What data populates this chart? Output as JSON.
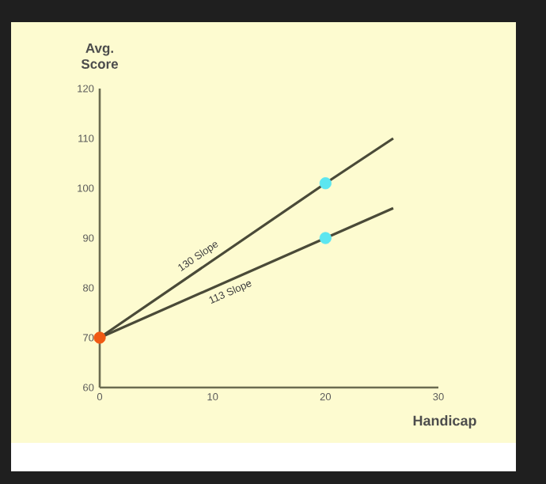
{
  "chart_data": {
    "type": "line",
    "xlabel": "Handicap",
    "ylabel": "Avg. Score",
    "series": [
      {
        "name": "130 Slope",
        "color": "#4a4a38",
        "x": [
          0,
          20,
          26
        ],
        "values": [
          70,
          101,
          110
        ]
      },
      {
        "name": "113 Slope",
        "color": "#4a4a38",
        "x": [
          0,
          20,
          26
        ],
        "values": [
          70,
          90,
          96
        ]
      },
      {
        "type": "scatter",
        "color": "#5ce6f0",
        "marker": "circle",
        "x": [
          20,
          20
        ],
        "values": [
          101,
          90
        ]
      },
      {
        "type": "scatter",
        "color": "#f05a14",
        "marker": "circle",
        "x": [
          0
        ],
        "values": [
          70
        ]
      }
    ],
    "xlim": [
      0,
      30
    ],
    "xticks": [
      0,
      10,
      20,
      30
    ],
    "ylim": [
      60,
      120
    ],
    "yticks": [
      60,
      70,
      80,
      90,
      100,
      110,
      120
    ],
    "grid": false
  }
}
